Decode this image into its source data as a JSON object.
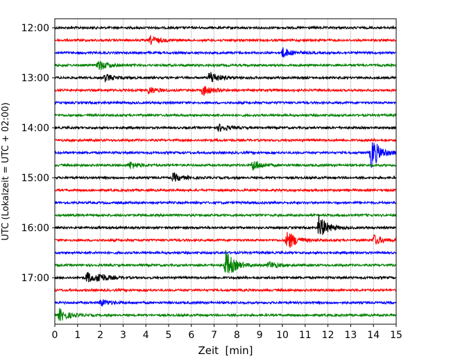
{
  "chart_data": {
    "type": "line",
    "title": "",
    "xlabel": "Zeit  [min]",
    "ylabel": "UTC (Lokalzeit = UTC + 02:00)",
    "xlim": [
      0,
      15
    ],
    "x_ticks": [
      0,
      1,
      2,
      3,
      4,
      5,
      6,
      7,
      8,
      9,
      10,
      11,
      12,
      13,
      14,
      15
    ],
    "grid": "vertical dotted at each minute",
    "trace_interval_minutes": 15,
    "y_tick_labels": [
      "12:00",
      "13:00",
      "14:00",
      "15:00",
      "16:00",
      "17:00"
    ],
    "traces": [
      {
        "start": "12:00",
        "color": "#000000"
      },
      {
        "start": "12:15",
        "color": "#ff0000"
      },
      {
        "start": "12:30",
        "color": "#0000ff"
      },
      {
        "start": "12:45",
        "color": "#008000"
      },
      {
        "start": "13:00",
        "color": "#000000"
      },
      {
        "start": "13:15",
        "color": "#ff0000"
      },
      {
        "start": "13:30",
        "color": "#0000ff"
      },
      {
        "start": "13:45",
        "color": "#008000"
      },
      {
        "start": "14:00",
        "color": "#000000"
      },
      {
        "start": "14:15",
        "color": "#ff0000"
      },
      {
        "start": "14:30",
        "color": "#0000ff"
      },
      {
        "start": "14:45",
        "color": "#008000"
      },
      {
        "start": "15:00",
        "color": "#000000"
      },
      {
        "start": "15:15",
        "color": "#ff0000"
      },
      {
        "start": "15:30",
        "color": "#0000ff"
      },
      {
        "start": "15:45",
        "color": "#008000"
      },
      {
        "start": "16:00",
        "color": "#000000"
      },
      {
        "start": "16:15",
        "color": "#ff0000"
      },
      {
        "start": "16:30",
        "color": "#0000ff"
      },
      {
        "start": "16:45",
        "color": "#008000"
      },
      {
        "start": "17:00",
        "color": "#000000"
      },
      {
        "start": "17:15",
        "color": "#ff0000"
      },
      {
        "start": "17:30",
        "color": "#0000ff"
      },
      {
        "start": "17:45",
        "color": "#008000"
      }
    ],
    "events": [
      {
        "trace": 1,
        "minute": 4.2,
        "amplitude": 0.35
      },
      {
        "trace": 2,
        "minute": 10.0,
        "amplitude": 0.4
      },
      {
        "trace": 3,
        "minute": 1.9,
        "amplitude": 0.45
      },
      {
        "trace": 4,
        "minute": 2.2,
        "amplitude": 0.3
      },
      {
        "trace": 4,
        "minute": 6.8,
        "amplitude": 0.55
      },
      {
        "trace": 5,
        "minute": 6.5,
        "amplitude": 0.45
      },
      {
        "trace": 5,
        "minute": 4.1,
        "amplitude": 0.3
      },
      {
        "trace": 8,
        "minute": 7.2,
        "amplitude": 0.3
      },
      {
        "trace": 10,
        "minute": 13.9,
        "amplitude": 1.3
      },
      {
        "trace": 11,
        "minute": 3.3,
        "amplitude": 0.3
      },
      {
        "trace": 11,
        "minute": 8.7,
        "amplitude": 0.45
      },
      {
        "trace": 12,
        "minute": 5.2,
        "amplitude": 0.35
      },
      {
        "trace": 16,
        "minute": 11.6,
        "amplitude": 1.0
      },
      {
        "trace": 17,
        "minute": 10.2,
        "amplitude": 0.85
      },
      {
        "trace": 17,
        "minute": 14.0,
        "amplitude": 0.45
      },
      {
        "trace": 19,
        "minute": 7.5,
        "amplitude": 1.2
      },
      {
        "trace": 19,
        "minute": 9.4,
        "amplitude": 0.3
      },
      {
        "trace": 20,
        "minute": 1.4,
        "amplitude": 0.45
      },
      {
        "trace": 20,
        "minute": 1.9,
        "amplitude": 0.35
      },
      {
        "trace": 22,
        "minute": 2.0,
        "amplitude": 0.3
      },
      {
        "trace": 23,
        "minute": 0.2,
        "amplitude": 0.5
      }
    ]
  }
}
